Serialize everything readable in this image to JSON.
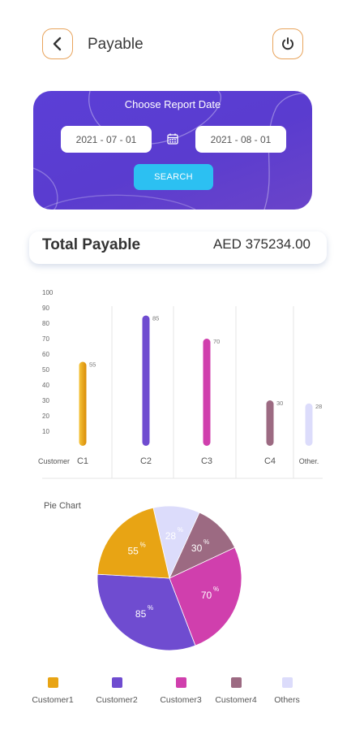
{
  "header": {
    "title": "Payable",
    "back_icon": "back-arrow-icon",
    "power_icon": "power-icon"
  },
  "report_date": {
    "title": "Choose Report Date",
    "from_date": "2021 -  07  - 01",
    "to_date": "2021 -  08  - 01",
    "calendar_icon": "calendar-icon",
    "search_label": "SEARCH"
  },
  "total": {
    "label": "Total Payable",
    "value": "AED 375234.00"
  },
  "colors": {
    "c1": "#e8a414",
    "c2": "#6f4cd0",
    "c3": "#d03fad",
    "c4": "#9c6a82",
    "others": "#dcdcfb",
    "accent": "#5b3fd6",
    "search": "#2cc0f2"
  },
  "chart_data": [
    {
      "type": "bar",
      "categories": [
        "C1",
        "C2",
        "C3",
        "C4",
        "Other."
      ],
      "values": [
        55,
        85,
        70,
        30,
        28
      ],
      "ylim": [
        0,
        100
      ],
      "yticks": [
        10,
        20,
        30,
        40,
        50,
        60,
        70,
        80,
        90,
        100
      ],
      "xlabel": "Customer",
      "colors": [
        "#e8a414",
        "#6f4cd0",
        "#d03fad",
        "#9c6a82",
        "#dcdcfb"
      ]
    },
    {
      "type": "pie",
      "title": "Pie Chart",
      "labels": [
        "Customer1",
        "Customer2",
        "Customer3",
        "Customer4",
        "Others"
      ],
      "values": [
        55,
        85,
        70,
        30,
        28
      ],
      "slice_labels": [
        "55",
        "85",
        "70",
        "30",
        "28"
      ],
      "percent_symbol": "%",
      "colors": [
        "#e8a414",
        "#6f4cd0",
        "#d03fad",
        "#9c6a82",
        "#dcdcfb"
      ]
    }
  ]
}
